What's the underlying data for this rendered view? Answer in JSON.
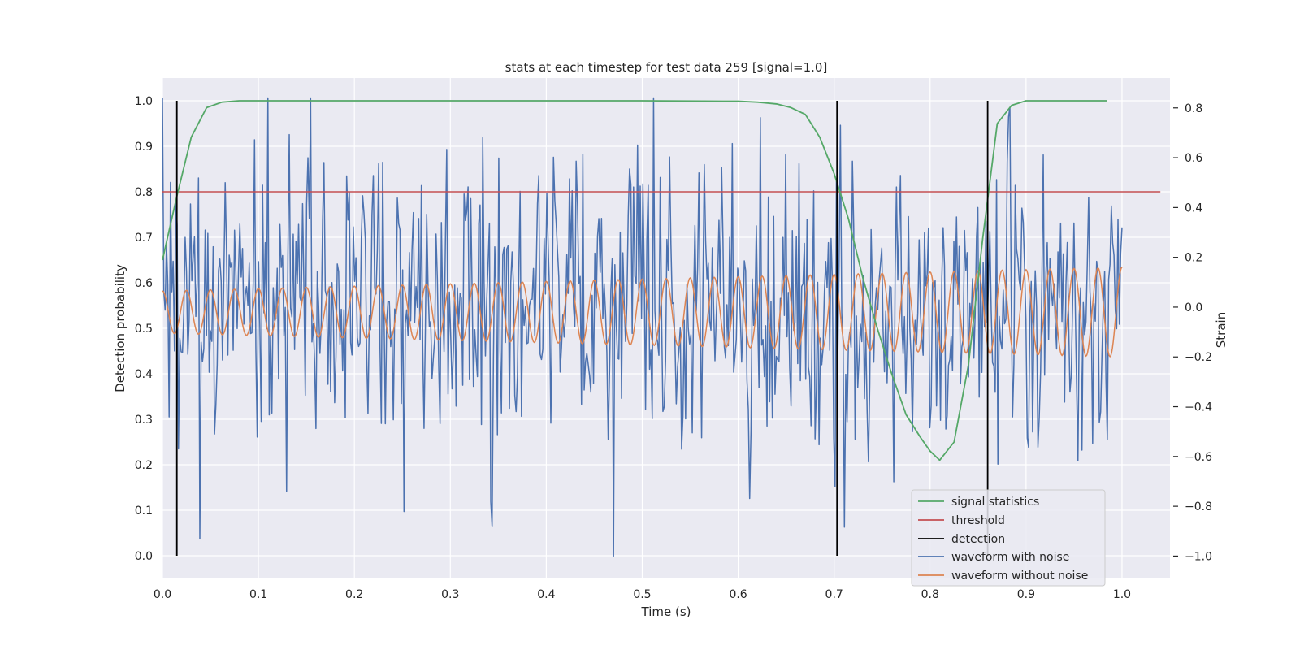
{
  "chart_data": {
    "type": "line",
    "title": "stats at each timestep for test data 259 [signal=1.0]",
    "xlabel": "Time (s)",
    "ylabel": "Detection probability",
    "y2label": "Strain",
    "xlim": [
      0.0,
      1.05
    ],
    "ylim": [
      -0.05,
      1.05
    ],
    "y2lim": [
      -1.09,
      0.92
    ],
    "xticks": [
      "0.0",
      "0.1",
      "0.2",
      "0.3",
      "0.4",
      "0.5",
      "0.6",
      "0.7",
      "0.8",
      "0.9",
      "1.0"
    ],
    "yticks": [
      "0.0",
      "0.1",
      "0.2",
      "0.3",
      "0.4",
      "0.5",
      "0.6",
      "0.7",
      "0.8",
      "0.9",
      "1.0"
    ],
    "y2ticks": [
      "−1.0",
      "−0.8",
      "−0.6",
      "−0.4",
      "−0.2",
      "0.0",
      "0.2",
      "0.4",
      "0.6",
      "0.8"
    ],
    "grid": true,
    "legend_position": "bottom-right",
    "colors": {
      "signal": "#55a868",
      "threshold": "#c44e52",
      "detection": "#000000",
      "noisy": "#4c72b0",
      "clean": "#dd8452",
      "plot_bg": "#eaeaf2",
      "grid": "#ffffff"
    },
    "series": [
      {
        "name": "signal statistics",
        "axis": "left",
        "x": [
          0.0,
          0.015,
          0.03,
          0.046,
          0.062,
          0.08,
          0.1,
          0.2,
          0.3,
          0.4,
          0.5,
          0.6,
          0.62,
          0.64,
          0.655,
          0.67,
          0.685,
          0.7,
          0.715,
          0.73,
          0.745,
          0.76,
          0.775,
          0.79,
          0.8,
          0.81,
          0.825,
          0.84,
          0.855,
          0.87,
          0.885,
          0.9,
          0.92,
          0.95,
          0.984
        ],
        "values": [
          0.65,
          0.79,
          0.92,
          0.985,
          0.997,
          1.0,
          1.0,
          1.0,
          1.0,
          1.0,
          1.0,
          0.999,
          0.997,
          0.993,
          0.985,
          0.97,
          0.92,
          0.84,
          0.74,
          0.61,
          0.5,
          0.4,
          0.31,
          0.26,
          0.23,
          0.21,
          0.25,
          0.42,
          0.7,
          0.95,
          0.99,
          1.0,
          1.0,
          1.0,
          1.0
        ]
      },
      {
        "name": "threshold",
        "axis": "left",
        "x": [
          0.0,
          1.04
        ],
        "values": [
          0.8,
          0.8
        ]
      },
      {
        "name": "detection",
        "axis": "left",
        "x": [
          0.015,
          0.703,
          0.86
        ],
        "values": [
          1.0,
          1.0,
          1.0
        ]
      },
      {
        "name": "waveform with noise",
        "axis": "right",
        "x_start": 0.0,
        "x_end": 1.0,
        "count": 720,
        "mean": 0.0,
        "std": 0.3,
        "min": -1.0,
        "max": 0.84
      },
      {
        "name": "waveform without noise",
        "axis": "right",
        "x_start": 0.0,
        "x_end": 1.0,
        "frequency_hz": 40,
        "amplitude_start": 0.085,
        "amplitude_end": 0.18,
        "mean": -0.02
      }
    ]
  }
}
